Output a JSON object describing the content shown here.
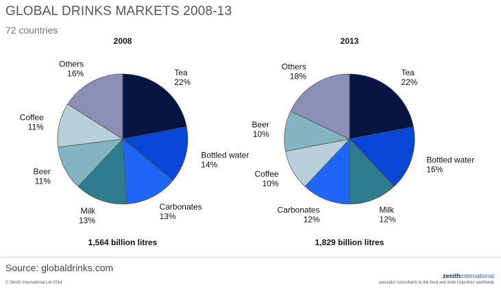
{
  "header": {
    "title": "GLOBAL DRINKS MARKETS 2008-13",
    "subtitle": "72 countries"
  },
  "colors": {
    "Tea": "#061442",
    "Bottled water": "#0846d6",
    "Carbonates": "#1e66f5",
    "Milk": "#2d7c8e",
    "Beer": "#82b4c3",
    "Coffee": "#b7d0d9",
    "Others": "#8a8fb3"
  },
  "chart_data": [
    {
      "type": "pie",
      "title": "2008",
      "total_label": "1,564 billion litres",
      "slices": [
        {
          "label": "Tea",
          "value": 22,
          "value_label": "22%"
        },
        {
          "label": "Bottled water",
          "value": 14,
          "value_label": "14%"
        },
        {
          "label": "Carbonates",
          "value": 13,
          "value_label": "13%"
        },
        {
          "label": "Milk",
          "value": 13,
          "value_label": "13%"
        },
        {
          "label": "Beer",
          "value": 11,
          "value_label": "11%"
        },
        {
          "label": "Coffee",
          "value": 11,
          "value_label": "11%"
        },
        {
          "label": "Others",
          "value": 16,
          "value_label": "16%"
        }
      ]
    },
    {
      "type": "pie",
      "title": "2013",
      "total_label": "1,829 billion litres",
      "slices": [
        {
          "label": "Tea",
          "value": 22,
          "value_label": "22%"
        },
        {
          "label": "Bottled water",
          "value": 16,
          "value_label": "16%"
        },
        {
          "label": "Milk",
          "value": 12,
          "value_label": "12%"
        },
        {
          "label": "Carbonates",
          "value": 12,
          "value_label": "12%"
        },
        {
          "label": "Coffee",
          "value": 10,
          "value_label": "10%"
        },
        {
          "label": "Beer",
          "value": 10,
          "value_label": "10%"
        },
        {
          "label": "Others",
          "value": 18,
          "value_label": "18%"
        }
      ]
    }
  ],
  "footer": {
    "source": "Source: globaldrinks.com",
    "copyright": "© Zenith International Ltd 2014",
    "brand_bold": "zenith",
    "brand_light": "international",
    "tagline": "specialist consultants to the food and drink industries worldwide"
  }
}
